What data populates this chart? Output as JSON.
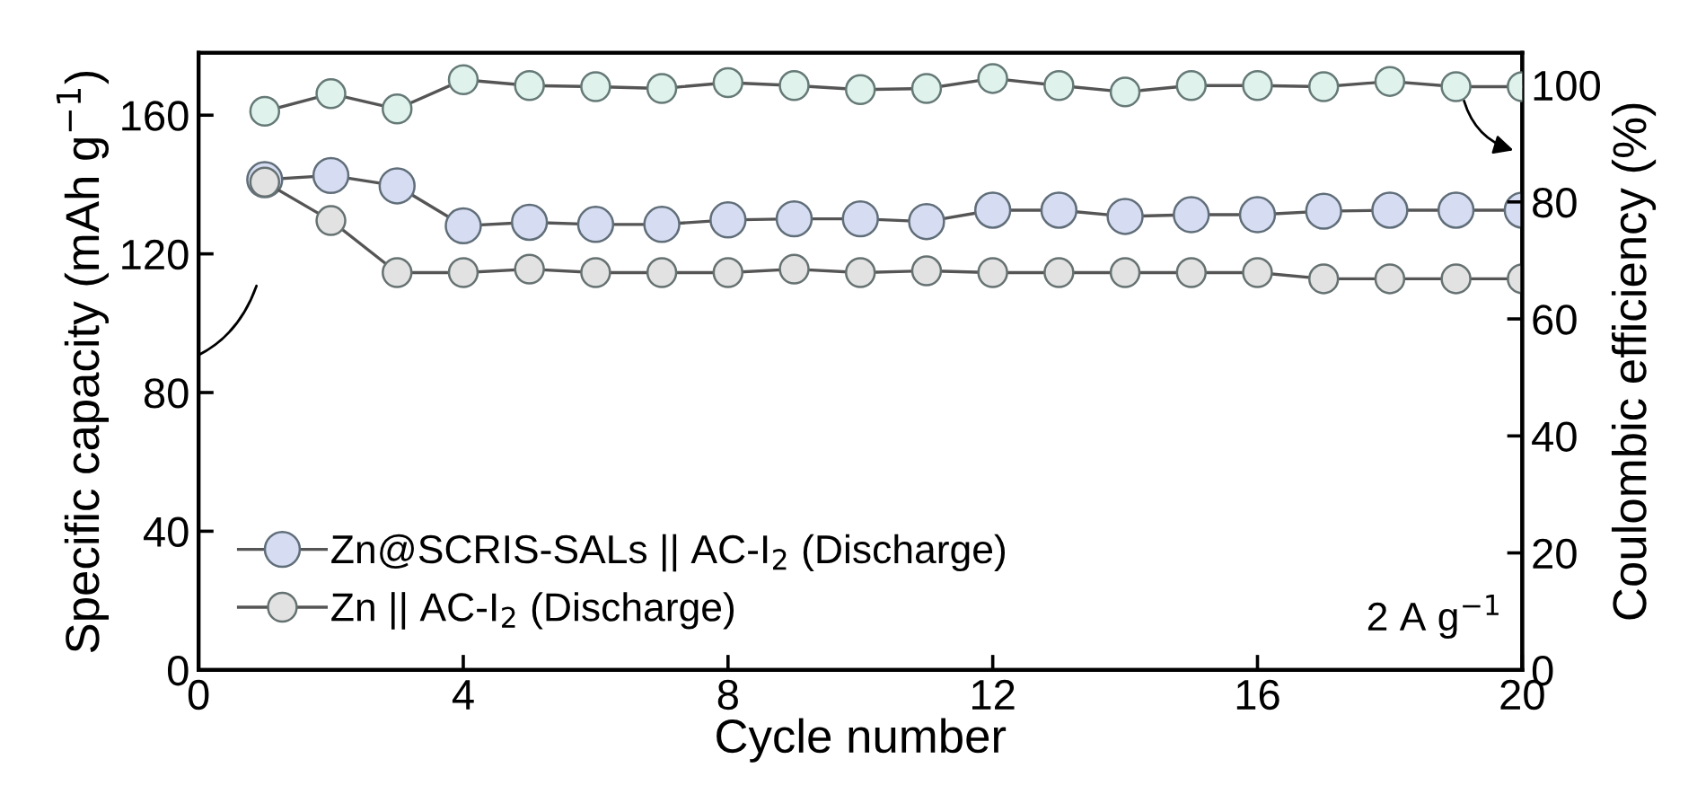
{
  "chart_data": {
    "type": "line",
    "xlabel": "Cycle number",
    "ylabel": "Specific capacity (mAh g$^{−1}$)",
    "y2label": "Coulombic efficiency (%)",
    "x": [
      1,
      2,
      3,
      4,
      5,
      6,
      7,
      8,
      9,
      10,
      11,
      12,
      13,
      14,
      15,
      16,
      17,
      18,
      19,
      20
    ],
    "series": [
      {
        "name": "Zn@SCRIS-SALs || AC-I$_{2}$ (Discharge)",
        "color": "#d6dcf2",
        "values": [
          141.4,
          142.6,
          139.6,
          128.1,
          129.1,
          128.5,
          128.5,
          129.8,
          130.1,
          130.1,
          129.3,
          132.6,
          132.6,
          130.8,
          131.3,
          131.3,
          132.3,
          132.6,
          132.6,
          132.6
        ]
      },
      {
        "name": "Zn || AC-I$_{2}$ (Discharge)",
        "color": "#e2e2e2",
        "values": [
          140.7,
          129.6,
          114.6,
          114.6,
          115.6,
          114.6,
          114.6,
          114.6,
          115.6,
          114.6,
          115.1,
          114.6,
          114.6,
          114.6,
          114.6,
          114.6,
          112.8,
          112.8,
          112.8,
          112.8
        ]
      },
      {
        "axis": "y2",
        "color": "#e0f2ec",
        "values": [
          95.5,
          98.5,
          95.9,
          100.9,
          99.9,
          99.7,
          99.4,
          100.4,
          99.9,
          99.2,
          99.4,
          101.1,
          99.9,
          98.8,
          99.9,
          99.9,
          99.7,
          100.6,
          99.7,
          99.7
        ]
      }
    ],
    "xlim": [
      0,
      20
    ],
    "xticks": [
      0,
      4,
      8,
      12,
      16,
      20
    ],
    "ylim": [
      0,
      178
    ],
    "yticks": [
      0,
      40,
      80,
      120,
      160
    ],
    "y2lim": [
      0,
      105.5
    ],
    "y2ticks": [
      0,
      20,
      40,
      60,
      80,
      100
    ],
    "annotations": [
      "2 A g$^{−1}$"
    ],
    "legend": "bottom left",
    "marker": "circle",
    "line_style": "solid",
    "grid": false
  }
}
